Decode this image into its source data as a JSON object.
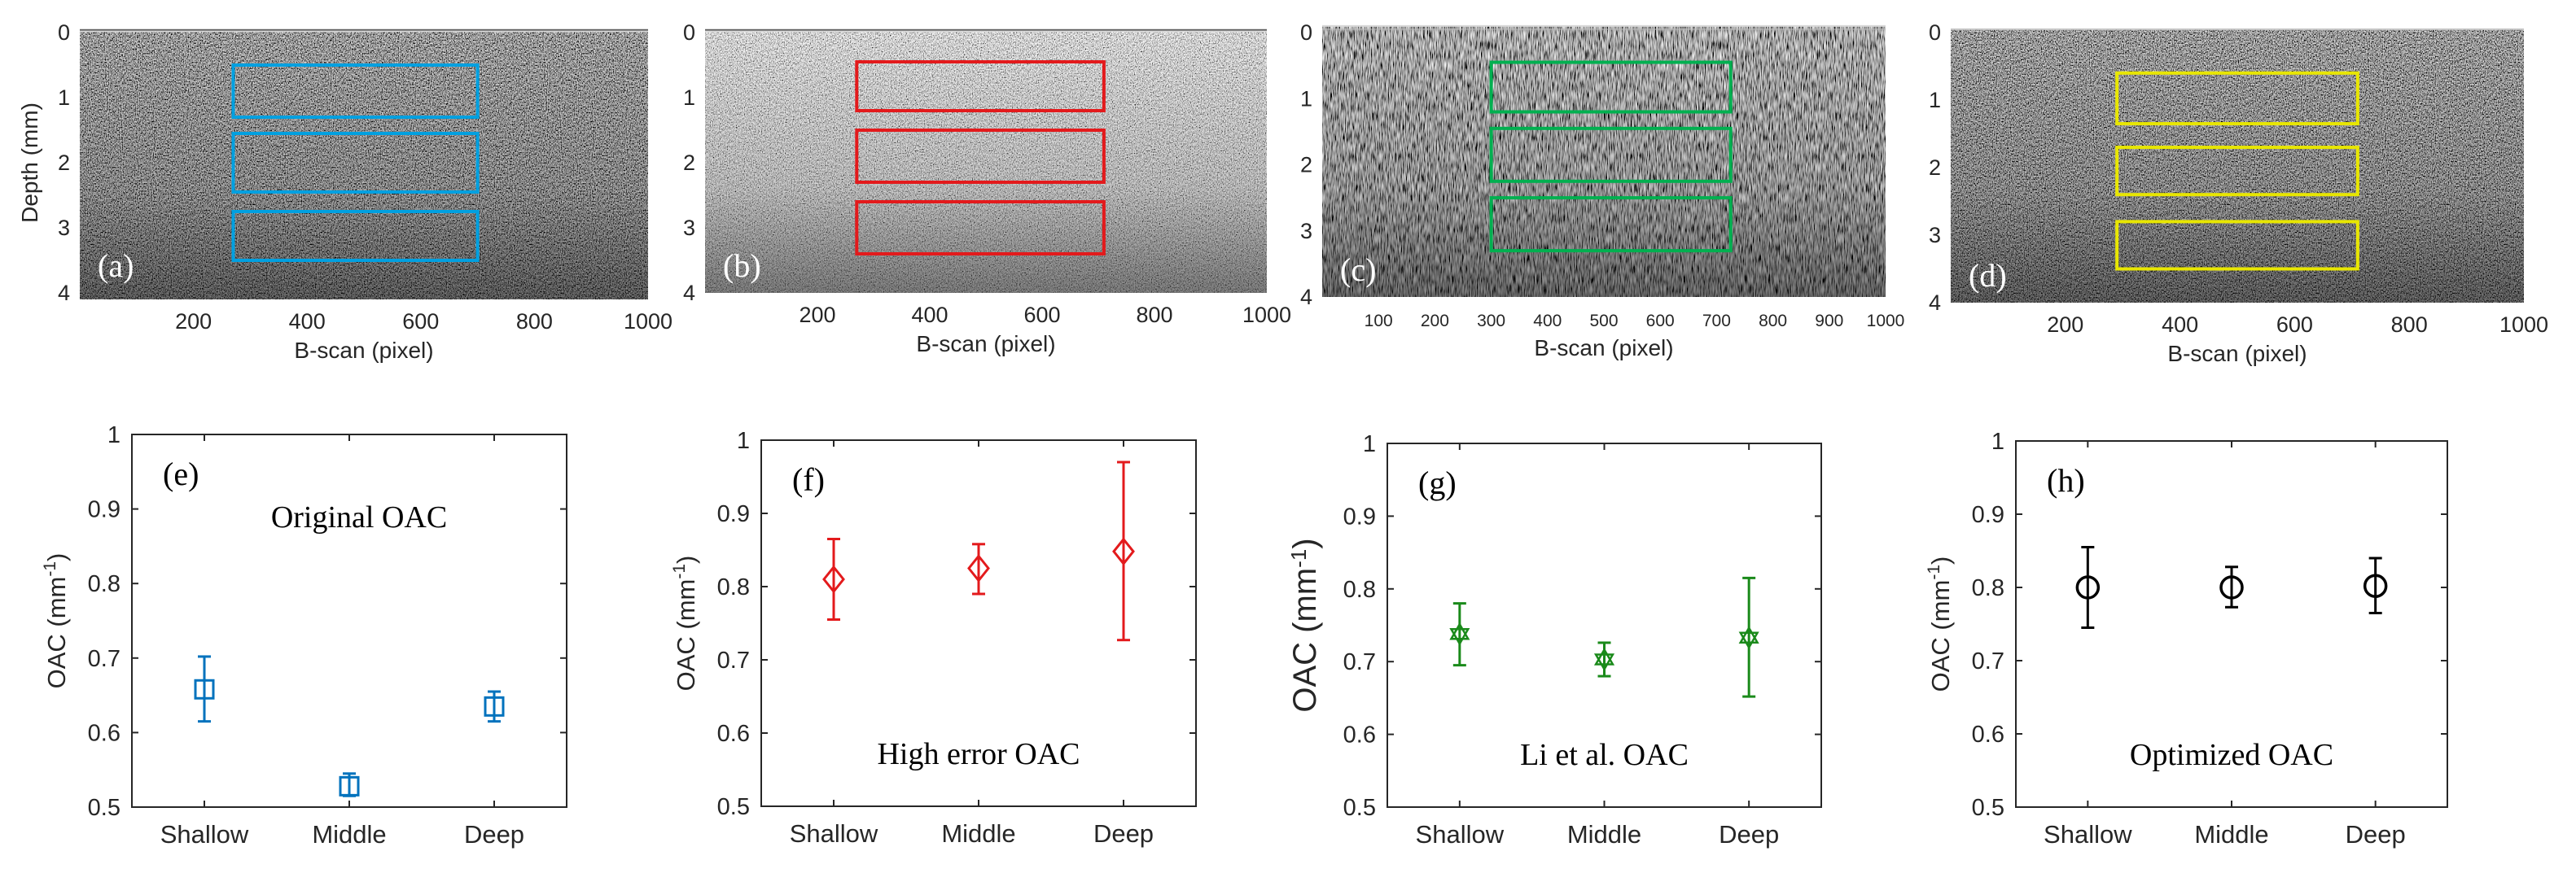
{
  "colors": {
    "a": "#00a0e0",
    "b": "#e31a1c",
    "c": "#00b050",
    "d": "#e8e600",
    "e": "#0072bd",
    "f": "#e31a1c",
    "g": "#1a8a1a",
    "h": "#000000",
    "axis": "#262626",
    "text_light": "#ffffff",
    "text_dark": "#000000"
  },
  "chart_data": [
    {
      "id": "a",
      "type": "heatmap",
      "panel_label": "(a)",
      "image": "OCT B-scan",
      "xlabel": "B-scan (pixel)",
      "ylabel": "Depth (mm)",
      "xlim": [
        0,
        1000
      ],
      "ylim": [
        0,
        4
      ],
      "xticks": [
        200,
        400,
        600,
        800,
        1000
      ],
      "yticks": [
        0,
        1,
        2,
        3,
        4
      ],
      "surface_depth": -0.02,
      "roi_boxes": [
        {
          "name": "Shallow",
          "x": [
            270,
            700
          ],
          "depth": [
            0.5,
            1.3
          ]
        },
        {
          "name": "Middle",
          "x": [
            270,
            700
          ],
          "depth": [
            1.55,
            2.45
          ]
        },
        {
          "name": "Deep",
          "x": [
            270,
            700
          ],
          "depth": [
            2.75,
            3.5
          ]
        }
      ]
    },
    {
      "id": "b",
      "type": "heatmap",
      "panel_label": "(b)",
      "image": "OCT B-scan",
      "xlabel": "B-scan (pixel)",
      "ylabel": "",
      "xlim": [
        0,
        1000
      ],
      "ylim": [
        0,
        4
      ],
      "xticks": [
        200,
        400,
        600,
        800,
        1000
      ],
      "yticks": [
        0,
        1,
        2,
        3,
        4
      ],
      "surface_depth": -0.02,
      "roi_boxes": [
        {
          "name": "Shallow",
          "x": [
            270,
            710
          ],
          "depth": [
            0.45,
            1.2
          ]
        },
        {
          "name": "Middle",
          "x": [
            270,
            710
          ],
          "depth": [
            1.5,
            2.3
          ]
        },
        {
          "name": "Deep",
          "x": [
            270,
            710
          ],
          "depth": [
            2.6,
            3.4
          ]
        }
      ]
    },
    {
      "id": "c",
      "type": "heatmap",
      "panel_label": "(c)",
      "image": "OCT B-scan",
      "xlabel": "B-scan (pixel)",
      "ylabel": "",
      "xlim": [
        0,
        1000
      ],
      "ylim": [
        0,
        4
      ],
      "xticks": [
        100,
        200,
        300,
        400,
        500,
        600,
        700,
        800,
        900,
        1000
      ],
      "yticks": [
        0,
        1,
        2,
        3,
        4
      ],
      "surface_depth": -0.1,
      "roi_boxes": [
        {
          "name": "Shallow",
          "x": [
            300,
            725
          ],
          "depth": [
            0.45,
            1.2
          ]
        },
        {
          "name": "Middle",
          "x": [
            300,
            725
          ],
          "depth": [
            1.45,
            2.25
          ]
        },
        {
          "name": "Deep",
          "x": [
            300,
            725
          ],
          "depth": [
            2.5,
            3.3
          ]
        }
      ]
    },
    {
      "id": "d",
      "type": "heatmap",
      "panel_label": "(d)",
      "image": "OCT B-scan",
      "xlabel": "B-scan (pixel)",
      "ylabel": "",
      "xlim": [
        0,
        1000
      ],
      "ylim": [
        0,
        4
      ],
      "xticks": [
        200,
        400,
        600,
        800,
        1000
      ],
      "yticks": [
        0,
        1,
        2,
        3,
        4
      ],
      "surface_depth": -0.05,
      "roi_boxes": [
        {
          "name": "Shallow",
          "x": [
            290,
            710
          ],
          "depth": [
            0.6,
            1.35
          ]
        },
        {
          "name": "Middle",
          "x": [
            290,
            710
          ],
          "depth": [
            1.7,
            2.4
          ]
        },
        {
          "name": "Deep",
          "x": [
            290,
            710
          ],
          "depth": [
            2.8,
            3.5
          ]
        }
      ]
    },
    {
      "id": "e",
      "type": "scatter",
      "panel_label": "(e)",
      "title": "Original OAC",
      "categories": [
        "Shallow",
        "Middle",
        "Deep"
      ],
      "ylabel_main": "OAC (mm",
      "ylabel_sup": "-1",
      "ylabel_end": ")",
      "ylim": [
        0.5,
        1
      ],
      "yticks": [
        "0.5",
        "0.6",
        "0.7",
        "0.8",
        "0.9",
        "1"
      ],
      "marker": "square",
      "values": [
        0.658,
        0.528,
        0.635
      ],
      "err_low": [
        0.615,
        0.515,
        0.615
      ],
      "err_high": [
        0.702,
        0.545,
        0.655
      ]
    },
    {
      "id": "f",
      "type": "scatter",
      "panel_label": "(f)",
      "title": "High error OAC",
      "categories": [
        "Shallow",
        "Middle",
        "Deep"
      ],
      "ylabel_main": "OAC (mm",
      "ylabel_sup": "-1",
      "ylabel_end": ")",
      "ylim": [
        0.5,
        1
      ],
      "yticks": [
        "0.5",
        "0.6",
        "0.7",
        "0.8",
        "0.9",
        "1"
      ],
      "marker": "diamond",
      "values": [
        0.81,
        0.825,
        0.848
      ],
      "err_low": [
        0.755,
        0.79,
        0.727
      ],
      "err_high": [
        0.865,
        0.858,
        0.97
      ]
    },
    {
      "id": "g",
      "type": "scatter",
      "panel_label": "(g)",
      "title": "Li et al. OAC",
      "categories": [
        "Shallow",
        "Middle",
        "Deep"
      ],
      "ylabel_main": "OAC (mm",
      "ylabel_sup": "-1",
      "ylabel_end": ")",
      "ylim": [
        0.5,
        1
      ],
      "yticks": [
        "0.5",
        "0.6",
        "0.7",
        "0.8",
        "0.9",
        "1"
      ],
      "marker": "hexagram",
      "values": [
        0.738,
        0.703,
        0.733
      ],
      "err_low": [
        0.695,
        0.68,
        0.652
      ],
      "err_high": [
        0.78,
        0.726,
        0.815
      ]
    },
    {
      "id": "h",
      "type": "scatter",
      "panel_label": "(h)",
      "title": "Optimized OAC",
      "categories": [
        "Shallow",
        "Middle",
        "Deep"
      ],
      "ylabel_main": "OAC (mm",
      "ylabel_sup": "-1",
      "ylabel_end": ")",
      "ylim": [
        0.5,
        1
      ],
      "yticks": [
        "0.5",
        "0.6",
        "0.7",
        "0.8",
        "0.9",
        "1"
      ],
      "marker": "circle",
      "values": [
        0.8,
        0.8,
        0.802
      ],
      "err_low": [
        0.745,
        0.773,
        0.765
      ],
      "err_high": [
        0.855,
        0.828,
        0.84
      ]
    }
  ]
}
